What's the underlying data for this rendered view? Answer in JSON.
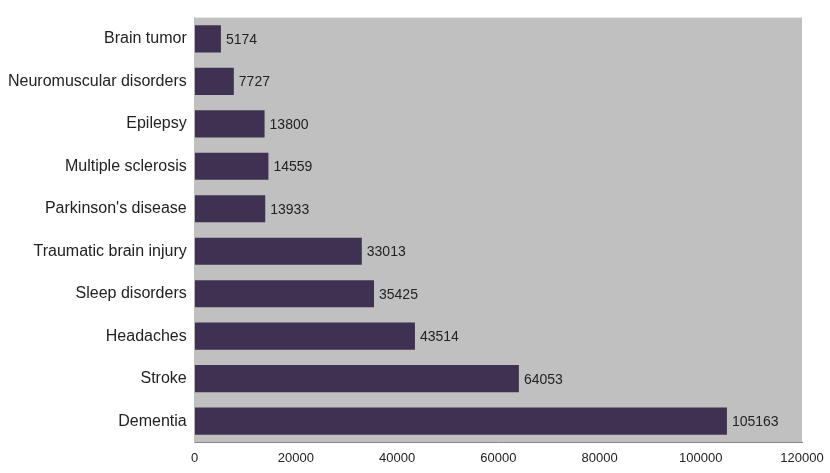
{
  "chart_data": {
    "type": "bar",
    "orientation": "horizontal",
    "categories": [
      "Brain tumor",
      "Neuromuscular disorders",
      "Epilepsy",
      "Multiple sclerosis",
      "Parkinson's disease",
      "Traumatic brain injury",
      "Sleep disorders",
      "Headaches",
      "Stroke",
      "Dementia"
    ],
    "values": [
      5174,
      7727,
      13800,
      14559,
      13933,
      33013,
      35425,
      43514,
      64053,
      105163
    ],
    "color": "#3f3151",
    "xlim": [
      0,
      120000
    ],
    "xticks": [
      0,
      20000,
      40000,
      60000,
      80000,
      100000,
      120000
    ],
    "grid": false,
    "data_labels": true
  }
}
